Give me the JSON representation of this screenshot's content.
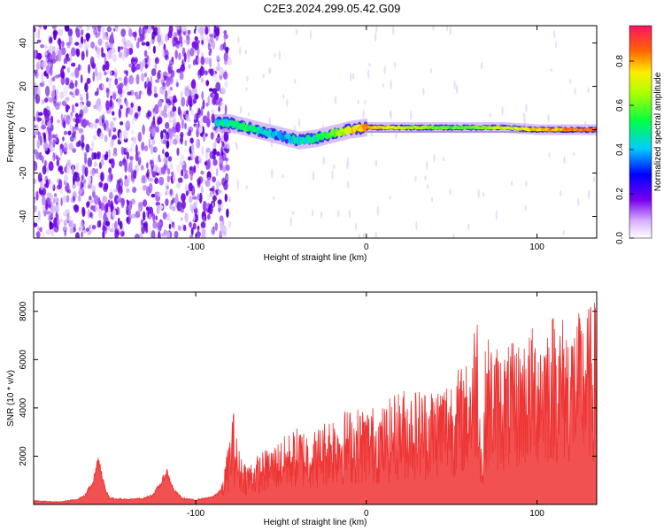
{
  "title": "C2E3.2024.299.05.42.G09",
  "chart_data": [
    {
      "type": "heatmap",
      "xlabel": "Height of straight line (km)",
      "ylabel": "Frequency (Hz)",
      "xlim": [
        -195,
        135
      ],
      "ylim": [
        -50,
        48
      ],
      "xticks": [
        -100,
        0,
        100
      ],
      "yticks": [
        -40,
        -20,
        0,
        20,
        40
      ],
      "colorbar": {
        "label": "Normalized spectral amplitude",
        "range": [
          0.0,
          0.96
        ],
        "ticks": [
          "0.0",
          "0.2",
          "0.4",
          "0.6",
          "0.8"
        ]
      },
      "noise_region_x": [
        -195,
        -80
      ],
      "ridge": {
        "x": [
          -88,
          -80,
          -70,
          -60,
          -50,
          -40,
          -30,
          -20,
          -10,
          0,
          20,
          50,
          80,
          100,
          135
        ],
        "freq": [
          3,
          3,
          1,
          -1,
          -3,
          -5,
          -4,
          -2,
          0,
          1,
          1,
          1,
          1,
          0,
          0
        ],
        "amplitude": [
          0.45,
          0.5,
          0.55,
          0.45,
          0.4,
          0.45,
          0.5,
          0.6,
          0.75,
          0.85,
          0.7,
          0.6,
          0.7,
          0.8,
          0.9
        ]
      }
    },
    {
      "type": "line",
      "xlabel": "Height of straight line (km)",
      "ylabel": "SNR (10 * v/v)",
      "xlim": [
        -195,
        135
      ],
      "ylim": [
        0,
        8800
      ],
      "xticks": [
        -100,
        0,
        100
      ],
      "yticks": [
        2000,
        4000,
        6000,
        8000
      ],
      "color": "#ee3333",
      "series": [
        {
          "x": [
            -195,
            -180,
            -170,
            -165,
            -160,
            -157,
            -153,
            -150,
            -140,
            -130,
            -125,
            -120,
            -117,
            -113,
            -108,
            -100,
            -90,
            -85,
            -82,
            -78,
            -75,
            -70,
            -60,
            -50,
            -40,
            -30,
            -20,
            -10,
            0,
            10,
            20,
            30,
            40,
            50,
            60,
            65,
            68,
            70,
            75,
            80,
            90,
            100,
            110,
            120,
            130,
            135
          ],
          "y": [
            150,
            100,
            200,
            350,
            1000,
            1900,
            600,
            250,
            200,
            250,
            400,
            900,
            1350,
            600,
            250,
            180,
            300,
            600,
            1600,
            3200,
            1900,
            1400,
            1800,
            2200,
            2600,
            2500,
            3100,
            3200,
            3300,
            3300,
            3900,
            3900,
            4000,
            4400,
            4800,
            6900,
            1300,
            5700,
            5400,
            5200,
            5500,
            6100,
            6500,
            6200,
            6600,
            6800
          ]
        }
      ]
    }
  ]
}
